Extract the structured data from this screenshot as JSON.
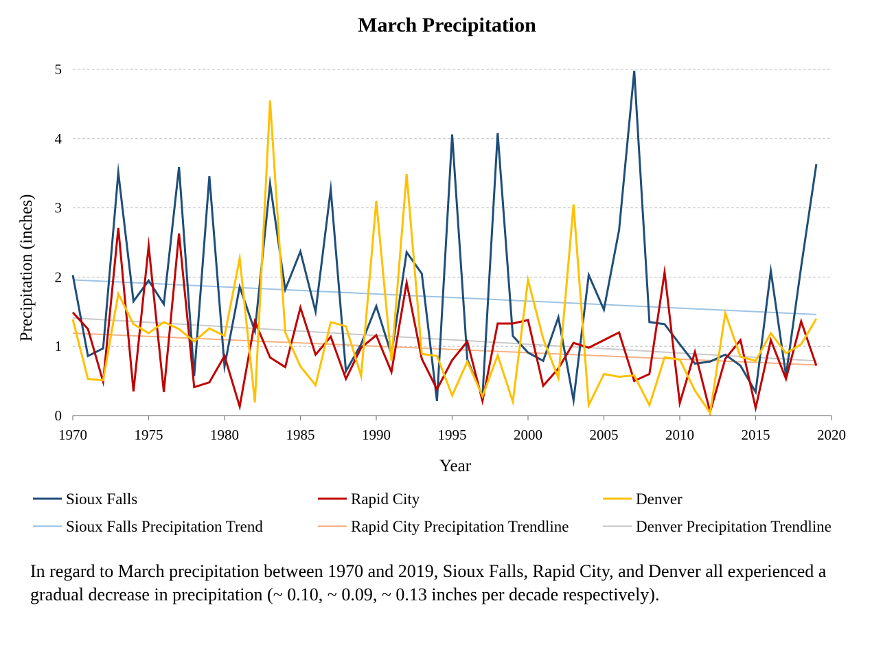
{
  "chart_data": {
    "type": "line",
    "title": "March Precipitation",
    "xlabel": "Year",
    "ylabel": "Precipitation (inches)",
    "xlim": [
      1970,
      2020
    ],
    "ylim": [
      0,
      5
    ],
    "x_ticks": [
      "1970",
      "1975",
      "1980",
      "1985",
      "1990",
      "1995",
      "2000",
      "2005",
      "2010",
      "2015",
      "2020"
    ],
    "y_ticks": [
      "0",
      "1",
      "2",
      "3",
      "4",
      "5"
    ],
    "grid": "horizontal dashed",
    "legend_position": "bottom",
    "x": [
      1970,
      1971,
      1972,
      1973,
      1974,
      1975,
      1976,
      1977,
      1978,
      1979,
      1980,
      1981,
      1982,
      1983,
      1984,
      1985,
      1986,
      1987,
      1988,
      1989,
      1990,
      1991,
      1992,
      1993,
      1994,
      1995,
      1996,
      1997,
      1998,
      1999,
      2000,
      2001,
      2002,
      2003,
      2004,
      2005,
      2006,
      2007,
      2008,
      2009,
      2010,
      2011,
      2012,
      2013,
      2014,
      2015,
      2016,
      2017,
      2018,
      2019
    ],
    "series": [
      {
        "name": "Sioux Falls",
        "color": "#1f4e79",
        "width": 3,
        "values": [
          2.03,
          0.86,
          0.97,
          3.51,
          1.65,
          1.95,
          1.61,
          3.59,
          0.57,
          3.46,
          0.71,
          1.86,
          1.22,
          3.35,
          1.82,
          2.37,
          1.5,
          3.27,
          0.64,
          1.03,
          1.58,
          0.88,
          2.36,
          2.05,
          0.21,
          4.06,
          0.81,
          0.28,
          4.08,
          1.15,
          0.91,
          0.79,
          1.42,
          0.22,
          2.03,
          1.53,
          2.68,
          4.98,
          1.35,
          1.32,
          1.03,
          0.75,
          0.78,
          0.88,
          0.72,
          0.34,
          2.09,
          0.58,
          2.15,
          3.63
        ]
      },
      {
        "name": "Rapid City",
        "color": "#c00000",
        "width": 3,
        "values": [
          1.49,
          1.25,
          0.49,
          2.71,
          0.35,
          2.45,
          0.34,
          2.63,
          0.41,
          0.48,
          0.86,
          0.13,
          1.36,
          0.84,
          0.7,
          1.56,
          0.88,
          1.14,
          0.53,
          0.98,
          1.16,
          0.63,
          1.92,
          0.82,
          0.38,
          0.8,
          1.07,
          0.21,
          1.33,
          1.33,
          1.38,
          0.43,
          0.68,
          1.05,
          0.98,
          1.09,
          1.2,
          0.5,
          0.6,
          2.07,
          0.18,
          0.92,
          0.05,
          0.82,
          1.09,
          0.11,
          1.09,
          0.53,
          1.36,
          0.72
        ]
      },
      {
        "name": "Denver",
        "color": "#ffc000",
        "width": 3,
        "values": [
          1.39,
          0.53,
          0.51,
          1.76,
          1.32,
          1.19,
          1.35,
          1.25,
          1.07,
          1.26,
          1.15,
          2.27,
          0.19,
          4.55,
          1.2,
          0.71,
          0.44,
          1.35,
          1.29,
          0.57,
          3.1,
          0.79,
          3.49,
          0.89,
          0.86,
          0.29,
          0.78,
          0.28,
          0.87,
          0.2,
          1.96,
          1.11,
          0.54,
          3.05,
          0.15,
          0.6,
          0.56,
          0.58,
          0.15,
          0.84,
          0.81,
          0.36,
          0.04,
          1.48,
          0.85,
          0.79,
          1.19,
          0.9,
          1.03,
          1.4
        ]
      },
      {
        "name": "Sioux Falls Precipitation Trend",
        "color": "#9dc3e6",
        "width": 2,
        "trend": [
          1.96,
          1.46
        ]
      },
      {
        "name": "Rapid City Precipitation Trendline",
        "color": "#f4b183",
        "width": 2,
        "trend": [
          1.19,
          0.73
        ]
      },
      {
        "name": "Denver Precipitation Trendline",
        "color": "#c9c9c9",
        "width": 2,
        "trend": [
          1.41,
          0.79
        ]
      }
    ]
  },
  "caption": "In regard to March precipitation between 1970 and 2019, Sioux Falls, Rapid City, and Denver all experienced a gradual decrease in precipitation (~ 0.10, ~ 0.09, ~ 0.13 inches per decade respectively)."
}
